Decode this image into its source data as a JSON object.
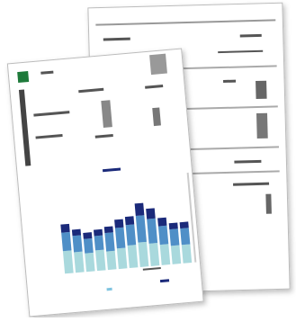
{
  "chart_data": {
    "type": "bar",
    "stacked": true,
    "ylim": [
      0,
      70
    ],
    "series": [
      {
        "color": "#a9d9dd",
        "values": [
          22,
          20,
          18,
          20,
          18,
          20,
          22,
          24,
          22,
          20,
          18,
          18
        ]
      },
      {
        "color": "#4f8fc7",
        "values": [
          18,
          16,
          14,
          14,
          18,
          20,
          20,
          26,
          24,
          18,
          16,
          16
        ]
      },
      {
        "color": "#1b2a7a",
        "values": [
          8,
          6,
          6,
          6,
          6,
          8,
          8,
          12,
          10,
          8,
          6,
          6
        ]
      }
    ]
  }
}
